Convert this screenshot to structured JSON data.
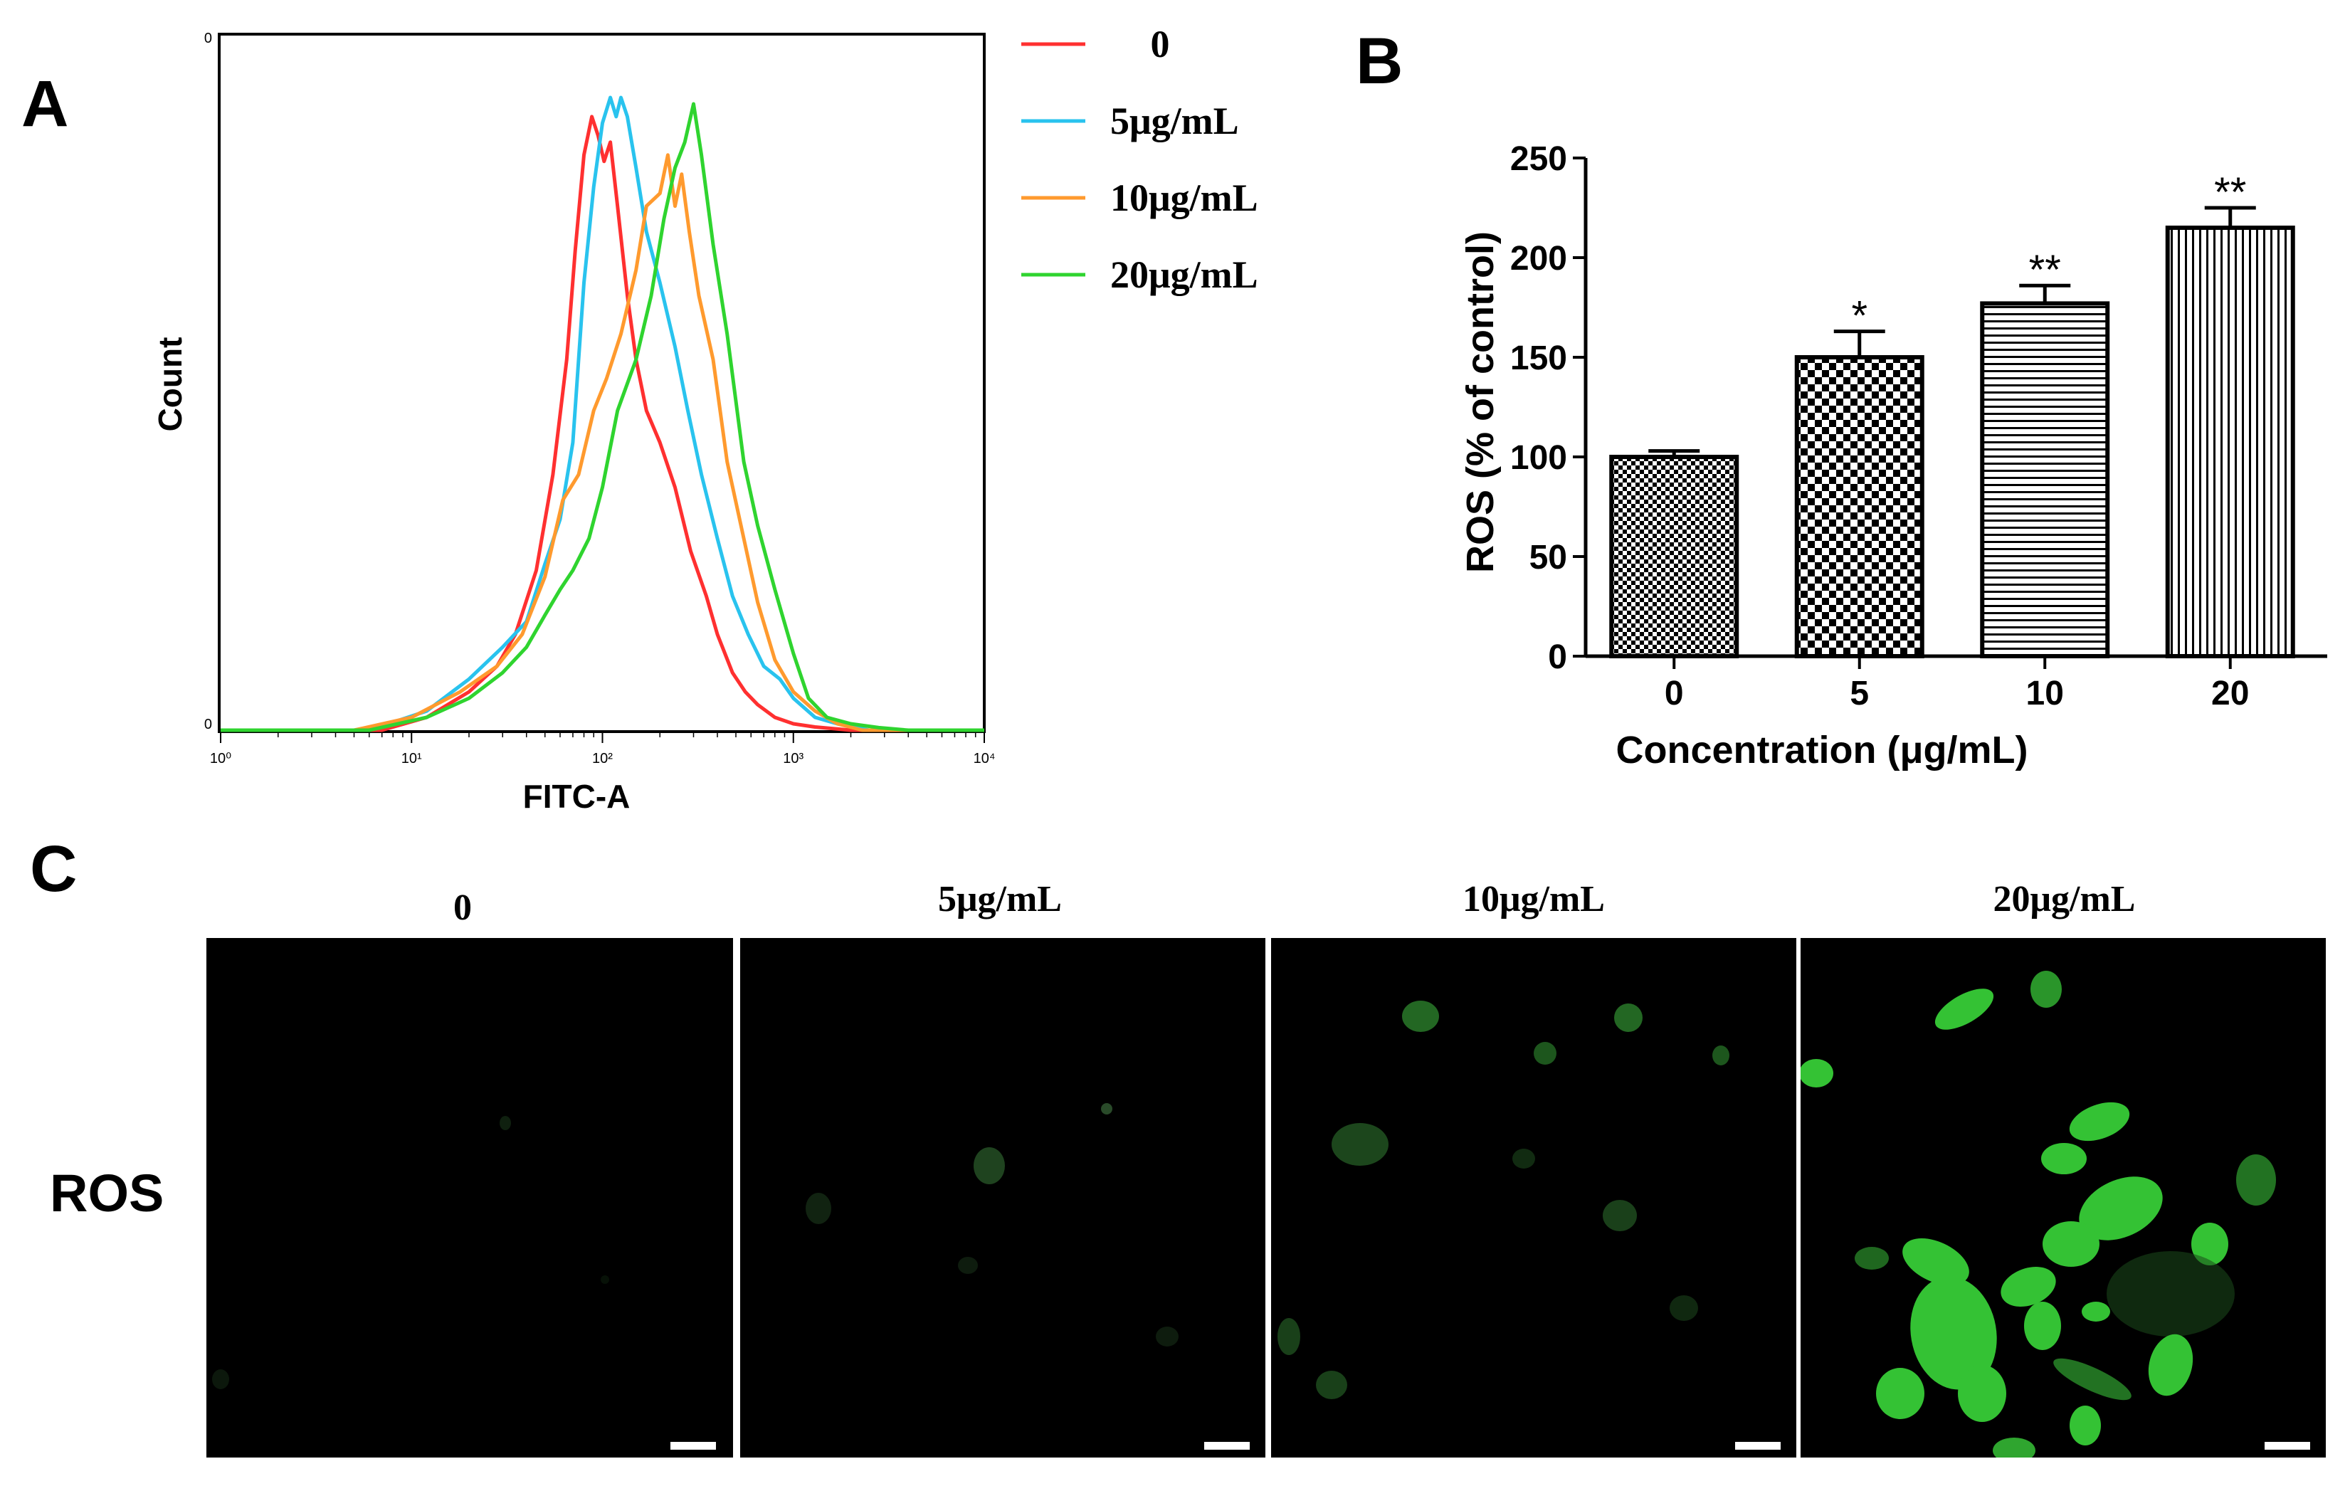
{
  "panels": {
    "a": "A",
    "b": "B",
    "c": "C"
  },
  "chart_data": [
    {
      "type": "line",
      "panel": "A",
      "title": "",
      "xlabel": "FITC-A",
      "ylabel": "Count",
      "xscale": "log",
      "xlim": [
        1,
        10000
      ],
      "x_ticks": [
        "10⁰",
        "10¹",
        "10²",
        "10³",
        "10⁴"
      ],
      "y_ticks": [
        "0",
        "0"
      ],
      "legend_position": "right-top",
      "series": [
        {
          "name": "0",
          "color": "#ff3030",
          "x": [
            1,
            7,
            12,
            20,
            28,
            35,
            45,
            55,
            65,
            72,
            80,
            88,
            95,
            102,
            110,
            120,
            135,
            150,
            170,
            200,
            240,
            290,
            350,
            400,
            480,
            560,
            650,
            800,
            1000,
            1300,
            2000,
            10000
          ],
          "y": [
            0,
            0,
            0.02,
            0.06,
            0.1,
            0.15,
            0.25,
            0.4,
            0.58,
            0.75,
            0.9,
            0.96,
            0.93,
            0.89,
            0.92,
            0.82,
            0.68,
            0.58,
            0.5,
            0.45,
            0.38,
            0.28,
            0.21,
            0.15,
            0.09,
            0.06,
            0.04,
            0.02,
            0.01,
            0.005,
            0,
            0
          ]
        },
        {
          "name": "5μg/mL",
          "color": "#29c3ee",
          "x": [
            1,
            6,
            12,
            20,
            30,
            40,
            50,
            60,
            70,
            80,
            90,
            100,
            110,
            118,
            125,
            135,
            150,
            170,
            200,
            240,
            280,
            330,
            400,
            480,
            580,
            700,
            850,
            1000,
            1300,
            1700,
            2500,
            10000
          ],
          "y": [
            0,
            0,
            0.03,
            0.08,
            0.13,
            0.17,
            0.26,
            0.33,
            0.45,
            0.7,
            0.85,
            0.95,
            0.99,
            0.96,
            0.99,
            0.96,
            0.88,
            0.78,
            0.7,
            0.6,
            0.5,
            0.4,
            0.3,
            0.21,
            0.15,
            0.1,
            0.08,
            0.05,
            0.02,
            0.01,
            0,
            0
          ]
        },
        {
          "name": "10μg/mL",
          "color": "#ff9a2e",
          "x": [
            1,
            5,
            10,
            18,
            28,
            38,
            50,
            62,
            75,
            90,
            105,
            125,
            150,
            170,
            200,
            220,
            240,
            260,
            285,
            320,
            380,
            450,
            550,
            650,
            800,
            1000,
            1300,
            1700,
            2300,
            10000
          ],
          "y": [
            0,
            0,
            0.02,
            0.06,
            0.1,
            0.15,
            0.24,
            0.36,
            0.4,
            0.5,
            0.55,
            0.62,
            0.72,
            0.82,
            0.84,
            0.9,
            0.82,
            0.87,
            0.78,
            0.68,
            0.58,
            0.42,
            0.3,
            0.2,
            0.11,
            0.06,
            0.03,
            0.01,
            0,
            0
          ]
        },
        {
          "name": "20μg/mL",
          "color": "#2fd42f",
          "x": [
            1,
            6,
            12,
            20,
            30,
            40,
            50,
            60,
            70,
            85,
            100,
            120,
            150,
            180,
            210,
            240,
            270,
            300,
            330,
            380,
            450,
            550,
            650,
            800,
            1000,
            1200,
            1500,
            2000,
            2800,
            4000,
            10000
          ],
          "y": [
            0,
            0,
            0.02,
            0.05,
            0.09,
            0.13,
            0.18,
            0.22,
            0.25,
            0.3,
            0.38,
            0.5,
            0.58,
            0.68,
            0.8,
            0.88,
            0.92,
            0.98,
            0.9,
            0.76,
            0.62,
            0.42,
            0.32,
            0.22,
            0.12,
            0.05,
            0.02,
            0.01,
            0.004,
            0,
            0
          ]
        }
      ]
    },
    {
      "type": "bar",
      "panel": "B",
      "title": "",
      "categories": [
        "0",
        "5",
        "10",
        "20"
      ],
      "values": [
        100,
        150,
        177,
        215
      ],
      "errors": [
        3,
        13,
        9,
        10
      ],
      "significance": [
        "",
        "*",
        "**",
        "**"
      ],
      "patterns": [
        "checker-fine",
        "checker-coarse",
        "horizontal-lines",
        "vertical-lines"
      ],
      "xlabel": "Concentration (μg/mL)",
      "ylabel": "ROS (% of control)",
      "ylim": [
        0,
        250
      ],
      "y_ticks": [
        "0",
        "50",
        "100",
        "150",
        "200",
        "250"
      ],
      "y_tick_values": [
        0,
        50,
        100,
        150,
        200,
        250
      ]
    }
  ],
  "panel_c": {
    "row_label": "ROS",
    "conditions": [
      "0",
      "5μg/mL",
      "10μg/mL",
      "20μg/mL"
    ],
    "fluorescence_color": "#2fbf2f",
    "relative_intensity": [
      0.02,
      0.1,
      0.35,
      0.9
    ]
  }
}
